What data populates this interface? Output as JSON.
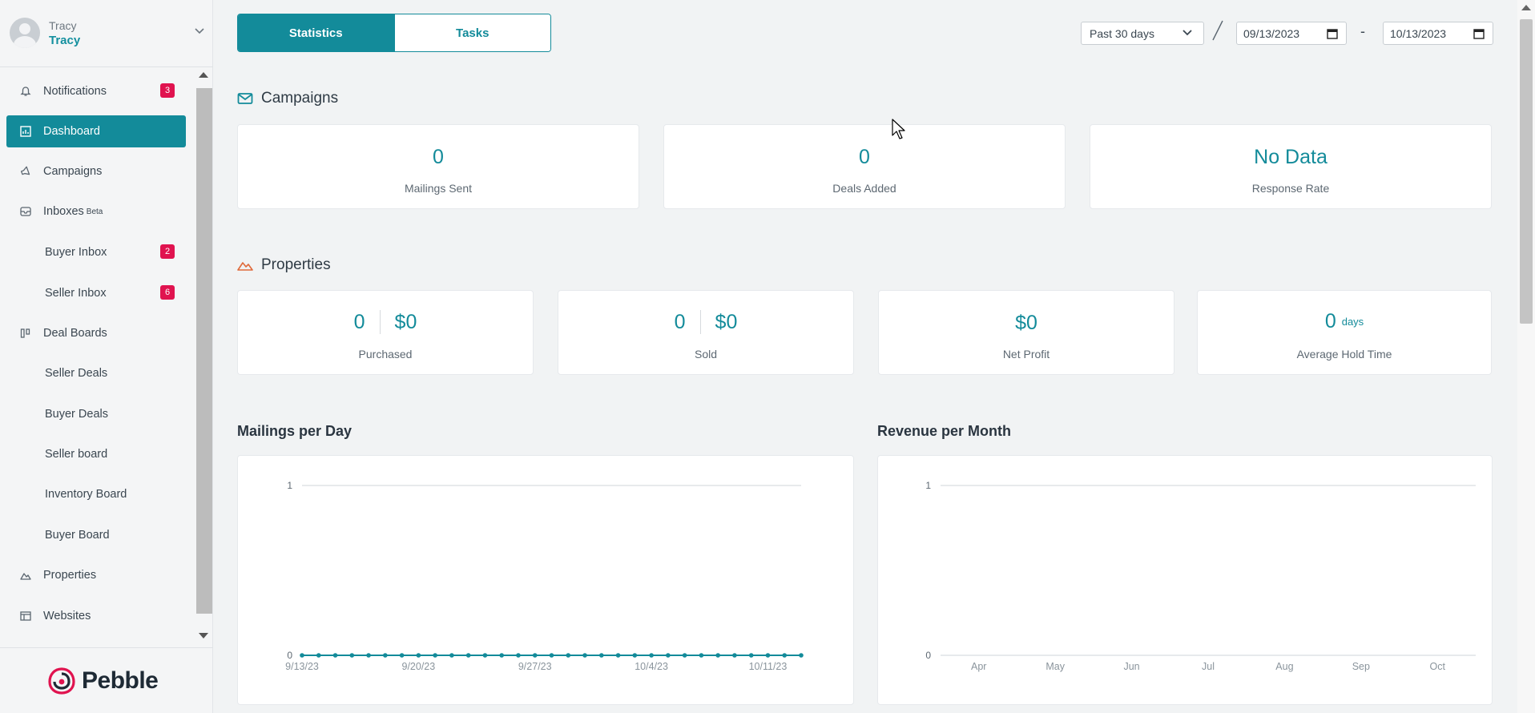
{
  "user": {
    "top_name": "Tracy",
    "name": "Tracy"
  },
  "sidebar": {
    "items": [
      {
        "label": "Notifications",
        "icon": "bell-icon",
        "badge": "3"
      },
      {
        "label": "Dashboard",
        "icon": "dashboard-icon",
        "active": true
      },
      {
        "label": "Campaigns",
        "icon": "megaphone-icon"
      },
      {
        "label": "Inboxes",
        "icon": "inbox-icon",
        "sup": "Beta"
      },
      {
        "label": "Buyer Inbox",
        "badge": "2"
      },
      {
        "label": "Seller Inbox",
        "badge": "6"
      },
      {
        "label": "Deal Boards",
        "icon": "board-icon"
      },
      {
        "label": "Seller Deals"
      },
      {
        "label": "Buyer Deals"
      },
      {
        "label": "Seller board"
      },
      {
        "label": "Inventory Board"
      },
      {
        "label": "Buyer Board"
      },
      {
        "label": "Properties",
        "icon": "mountain-icon"
      },
      {
        "label": "Websites",
        "icon": "website-icon"
      }
    ],
    "logo_text": "Pebble"
  },
  "tabs": {
    "statistics": "Statistics",
    "tasks": "Tasks"
  },
  "filters": {
    "range": "Past 30 days",
    "start_date": "09/13/2023",
    "end_date": "10/13/2023",
    "separator": "-"
  },
  "campaigns": {
    "title": "Campaigns",
    "stats": [
      {
        "value": "0",
        "label": "Mailings Sent"
      },
      {
        "value": "0",
        "label": "Deals Added"
      },
      {
        "value": "No Data",
        "label": "Response Rate"
      }
    ]
  },
  "properties": {
    "title": "Properties",
    "purchased": {
      "count": "0",
      "amount": "$0",
      "label": "Purchased"
    },
    "sold": {
      "count": "0",
      "amount": "$0",
      "label": "Sold"
    },
    "net_profit": {
      "value": "$0",
      "label": "Net Profit"
    },
    "hold_time": {
      "value": "0",
      "unit": "days",
      "label": "Average Hold Time"
    }
  },
  "chart_data": [
    {
      "type": "line",
      "title": "Mailings per Day",
      "x": [
        "9/13/23",
        "9/14/23",
        "9/15/23",
        "9/16/23",
        "9/17/23",
        "9/18/23",
        "9/19/23",
        "9/20/23",
        "9/21/23",
        "9/22/23",
        "9/23/23",
        "9/24/23",
        "9/25/23",
        "9/26/23",
        "9/27/23",
        "9/28/23",
        "9/29/23",
        "9/30/23",
        "10/1/23",
        "10/2/23",
        "10/3/23",
        "10/4/23",
        "10/5/23",
        "10/6/23",
        "10/7/23",
        "10/8/23",
        "10/9/23",
        "10/10/23",
        "10/11/23",
        "10/12/23",
        "10/13/23"
      ],
      "x_tick_labels": [
        "9/13/23",
        "9/20/23",
        "9/27/23",
        "10/4/23",
        "10/11/23"
      ],
      "values": [
        0,
        0,
        0,
        0,
        0,
        0,
        0,
        0,
        0,
        0,
        0,
        0,
        0,
        0,
        0,
        0,
        0,
        0,
        0,
        0,
        0,
        0,
        0,
        0,
        0,
        0,
        0,
        0,
        0,
        0,
        0
      ],
      "y_tick_labels": [
        "1",
        "0"
      ],
      "ylim": [
        0,
        1
      ],
      "color": "#138b9a"
    },
    {
      "type": "line",
      "title": "Revenue per Month",
      "categories": [
        "Apr",
        "May",
        "Jun",
        "Jul",
        "Aug",
        "Sep",
        "Oct"
      ],
      "values": [
        0,
        0,
        0,
        0,
        0,
        0,
        0
      ],
      "y_tick_labels": [
        "1",
        "0"
      ],
      "ylim": [
        0,
        1
      ]
    }
  ]
}
